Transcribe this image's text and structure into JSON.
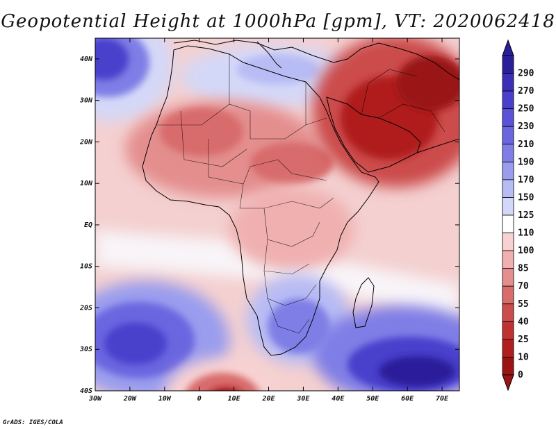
{
  "title": "Geopotential Height at 1000hPa [gpm], VT: 2020062418",
  "footer": "GrADS: IGES/COLA",
  "axes": {
    "lon_ticks": [
      "30W",
      "20W",
      "10W",
      "0",
      "10E",
      "20E",
      "30E",
      "40E",
      "50E",
      "60E",
      "70E"
    ],
    "lat_ticks": [
      "40N",
      "30N",
      "20N",
      "10N",
      "EQ",
      "10S",
      "20S",
      "30S",
      "40S"
    ]
  },
  "colorbar": {
    "levels": [
      "290",
      "270",
      "250",
      "230",
      "210",
      "190",
      "170",
      "150",
      "125",
      "110",
      "100",
      "85",
      "70",
      "55",
      "40",
      "25",
      "10",
      "0"
    ],
    "colors": [
      "#2a1f9a",
      "#3b2fb8",
      "#4a3fcc",
      "#5a52d8",
      "#6a66e0",
      "#7f7ee6",
      "#9a9cee",
      "#b8bcf4",
      "#d4d8f8",
      "#ffffff",
      "#f8d2d2",
      "#f0b0b0",
      "#e48e8e",
      "#d86c6c",
      "#cc4c4c",
      "#c03232",
      "#b01e1e",
      "#9a1414"
    ]
  },
  "map": {
    "land_colors": {
      "sahara_north": "#e8a8a8",
      "sahel": "#dc7a7a",
      "arabia": "#b02020",
      "central": "#e89a9a",
      "southern": "#8f8ee8",
      "madagascar": "#c8cdf6"
    },
    "ocean_colors": {
      "north_atlantic_high": "#5a52d8",
      "south_atlantic_high": "#4a3fcc",
      "indian_ocean_high": "#3b2fb8",
      "low_south_atlantic": "#a01414"
    }
  }
}
